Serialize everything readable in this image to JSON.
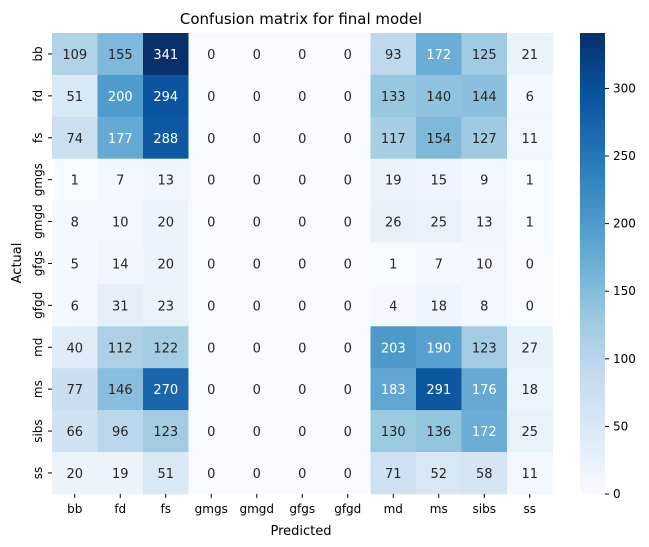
{
  "chart_data": {
    "type": "heatmap",
    "title": "Confusion matrix for final model",
    "xlabel": "Predicted",
    "ylabel": "Actual",
    "x_categories": [
      "bb",
      "fd",
      "fs",
      "gmgs",
      "gmgd",
      "gfgs",
      "gfgd",
      "md",
      "ms",
      "sibs",
      "ss"
    ],
    "y_categories": [
      "bb",
      "fd",
      "fs",
      "gmgs",
      "gmgd",
      "gfgs",
      "gfgd",
      "md",
      "ms",
      "sibs",
      "ss"
    ],
    "values": [
      [
        109,
        155,
        341,
        0,
        0,
        0,
        0,
        93,
        172,
        125,
        21
      ],
      [
        51,
        200,
        294,
        0,
        0,
        0,
        0,
        133,
        140,
        144,
        6
      ],
      [
        74,
        177,
        288,
        0,
        0,
        0,
        0,
        117,
        154,
        127,
        11
      ],
      [
        1,
        7,
        13,
        0,
        0,
        0,
        0,
        19,
        15,
        9,
        1
      ],
      [
        8,
        10,
        20,
        0,
        0,
        0,
        0,
        26,
        25,
        13,
        1
      ],
      [
        5,
        14,
        20,
        0,
        0,
        0,
        0,
        1,
        7,
        10,
        0
      ],
      [
        6,
        31,
        23,
        0,
        0,
        0,
        0,
        4,
        18,
        8,
        0
      ],
      [
        40,
        112,
        122,
        0,
        0,
        0,
        0,
        203,
        190,
        123,
        27
      ],
      [
        77,
        146,
        270,
        0,
        0,
        0,
        0,
        183,
        291,
        176,
        18
      ],
      [
        66,
        96,
        123,
        0,
        0,
        0,
        0,
        130,
        136,
        172,
        25
      ],
      [
        20,
        19,
        51,
        0,
        0,
        0,
        0,
        71,
        52,
        58,
        11
      ]
    ],
    "colorbar": {
      "min": 0,
      "max": 341,
      "ticks": [
        0,
        50,
        100,
        150,
        200,
        250,
        300
      ]
    },
    "colormap": "Blues",
    "grid": false
  }
}
